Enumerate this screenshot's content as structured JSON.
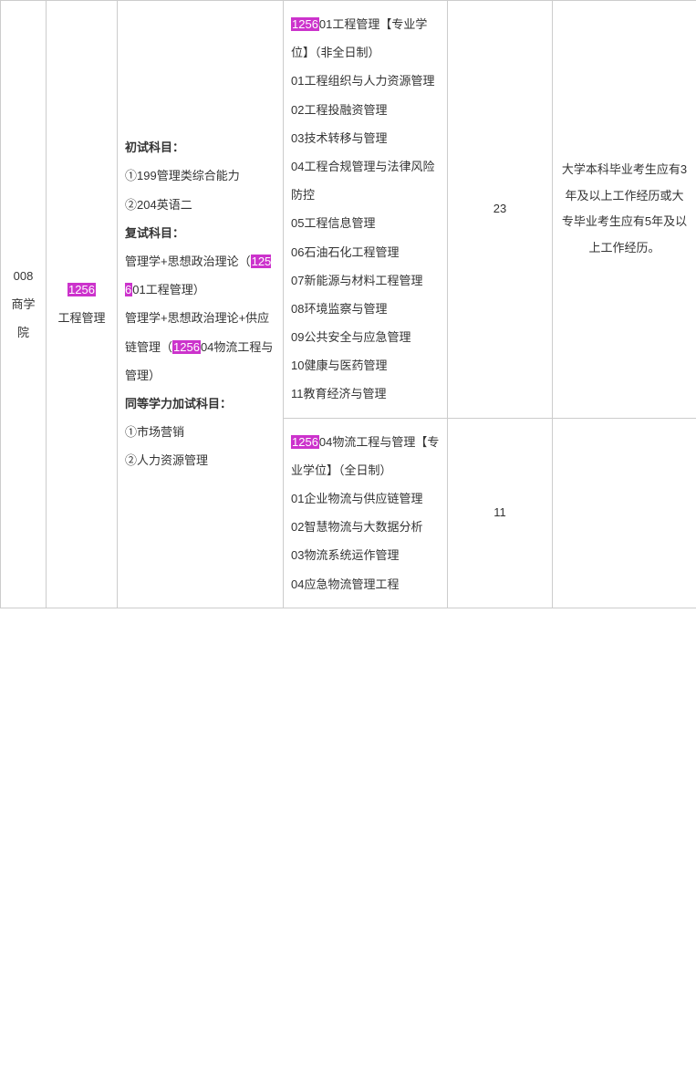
{
  "highlight_bg": "#cc33cc",
  "highlight_fg": "#ffffff",
  "text_color": "#333333",
  "border_color": "#cccccc",
  "col1": {
    "code": "008",
    "dept_l1": "商学",
    "dept_l2": "院"
  },
  "col2": {
    "code_hl": "1256",
    "major": "工程管理"
  },
  "col3": {
    "h1": "初试科目：",
    "i1": "①199管理类综合能力",
    "i2": "②204英语二",
    "h2": "复试科目：",
    "i3a": "管理学+思想政治理论（",
    "i3hl": "1256",
    "i3b": "01工程管理）",
    "i4a": "管理学+思想政治理论+供应链管理（",
    "i4hl": "1256",
    "i4b": "04物流工程与管理）",
    "h3": "同等学力加试科目：",
    "i5": "①市场营销",
    "i6": "②人力资源管理"
  },
  "row1": {
    "col4": {
      "t_hl": "1256",
      "t_a": "01工程管理【专业学位】（非全日制）",
      "d1": "01工程组织与人力资源管理",
      "d2": "02工程投融资管理",
      "d3": "03技术转移与管理",
      "d4": "04工程合规管理与法律风险防控",
      "d5": "05工程信息管理",
      "d6": "06石油石化工程管理",
      "d7": "07新能源与材料工程管理",
      "d8": "08环境监察与管理",
      "d9": "09公共安全与应急管理",
      "d10": "10健康与医药管理",
      "d11": "11教育经济与管理"
    },
    "col5": "23",
    "col6": "大学本科毕业考生应有3年及以上工作经历或大专毕业考生应有5年及以上工作经历。"
  },
  "row2": {
    "col4": {
      "t_hl": "1256",
      "t_a": "04物流工程与管理【专业学位】（全日制）",
      "d1": "01企业物流与供应链管理",
      "d2": "02智慧物流与大数据分析",
      "d3": "03物流系统运作管理",
      "d4": "04应急物流管理工程"
    },
    "col5": "11",
    "col6": ""
  }
}
